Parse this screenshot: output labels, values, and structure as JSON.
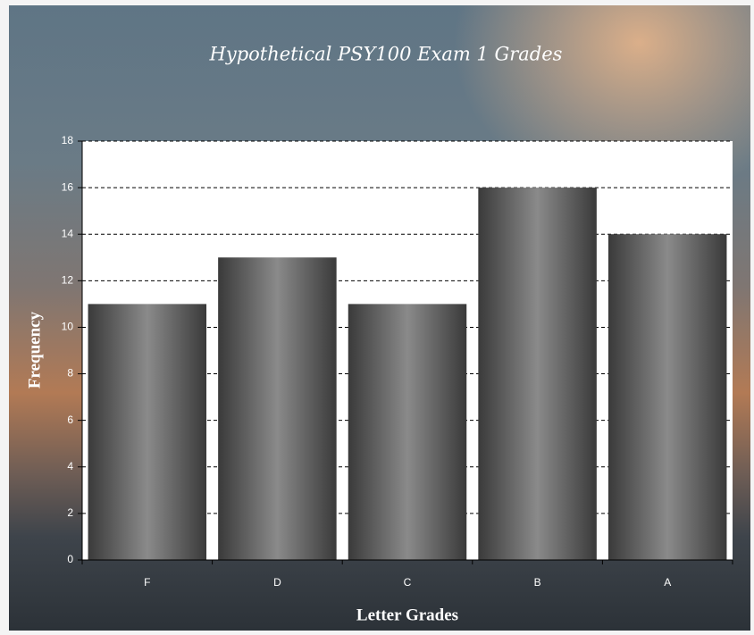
{
  "chart_data": {
    "type": "bar",
    "title": "Hypothetical PSY100 Exam 1 Grades",
    "x_label": "Letter Grades",
    "y_label": "Frequency",
    "categories": [
      "F",
      "D",
      "C",
      "B",
      "A"
    ],
    "values": [
      11,
      13,
      11,
      16,
      14
    ],
    "color": "#3a3a3a",
    "ylim": [
      0,
      18
    ],
    "yticks": [
      0,
      2,
      4,
      6,
      8,
      10,
      12,
      14,
      16,
      18
    ],
    "grid": true
  }
}
